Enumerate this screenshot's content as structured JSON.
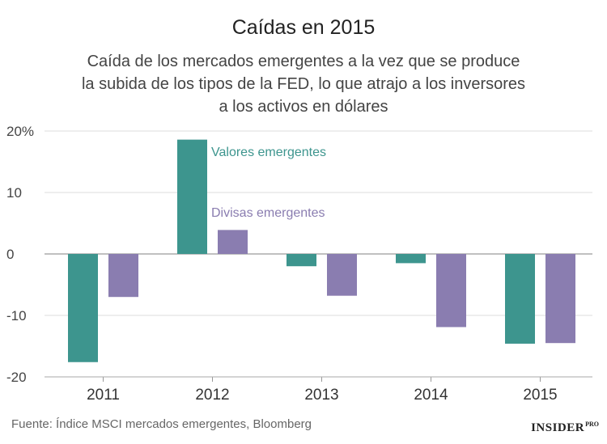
{
  "chart_data": {
    "type": "bar",
    "title": "Caídas en 2015",
    "subtitle_lines": [
      "Caída de los mercados emergentes a la vez que se produce",
      "la subida de los tipos de la FED, lo que atrajo a los inversores",
      "a los activos en dólares"
    ],
    "categories": [
      "2011",
      "2012",
      "2013",
      "2014",
      "2015"
    ],
    "series": [
      {
        "name": "Valores emergentes",
        "color": "#3d958e",
        "values": [
          -17.6,
          18.6,
          -2.0,
          -1.5,
          -14.6
        ]
      },
      {
        "name": "Divisas emergentes",
        "color": "#8a7db0",
        "values": [
          -7.0,
          3.9,
          -6.8,
          -11.9,
          -14.5
        ]
      }
    ],
    "y_ticks": [
      20,
      10,
      0,
      -10,
      -20
    ],
    "y_tick_labels": [
      "20%",
      "10",
      "0",
      "-10",
      "-20"
    ],
    "ylim": [
      -20,
      20
    ],
    "xlabel": "",
    "ylabel": "",
    "grid": true
  },
  "source": "Fuente: Índice MSCI mercados emergentes, Bloomberg",
  "logo": {
    "main": "INSIDER",
    "suffix": "PRO"
  }
}
